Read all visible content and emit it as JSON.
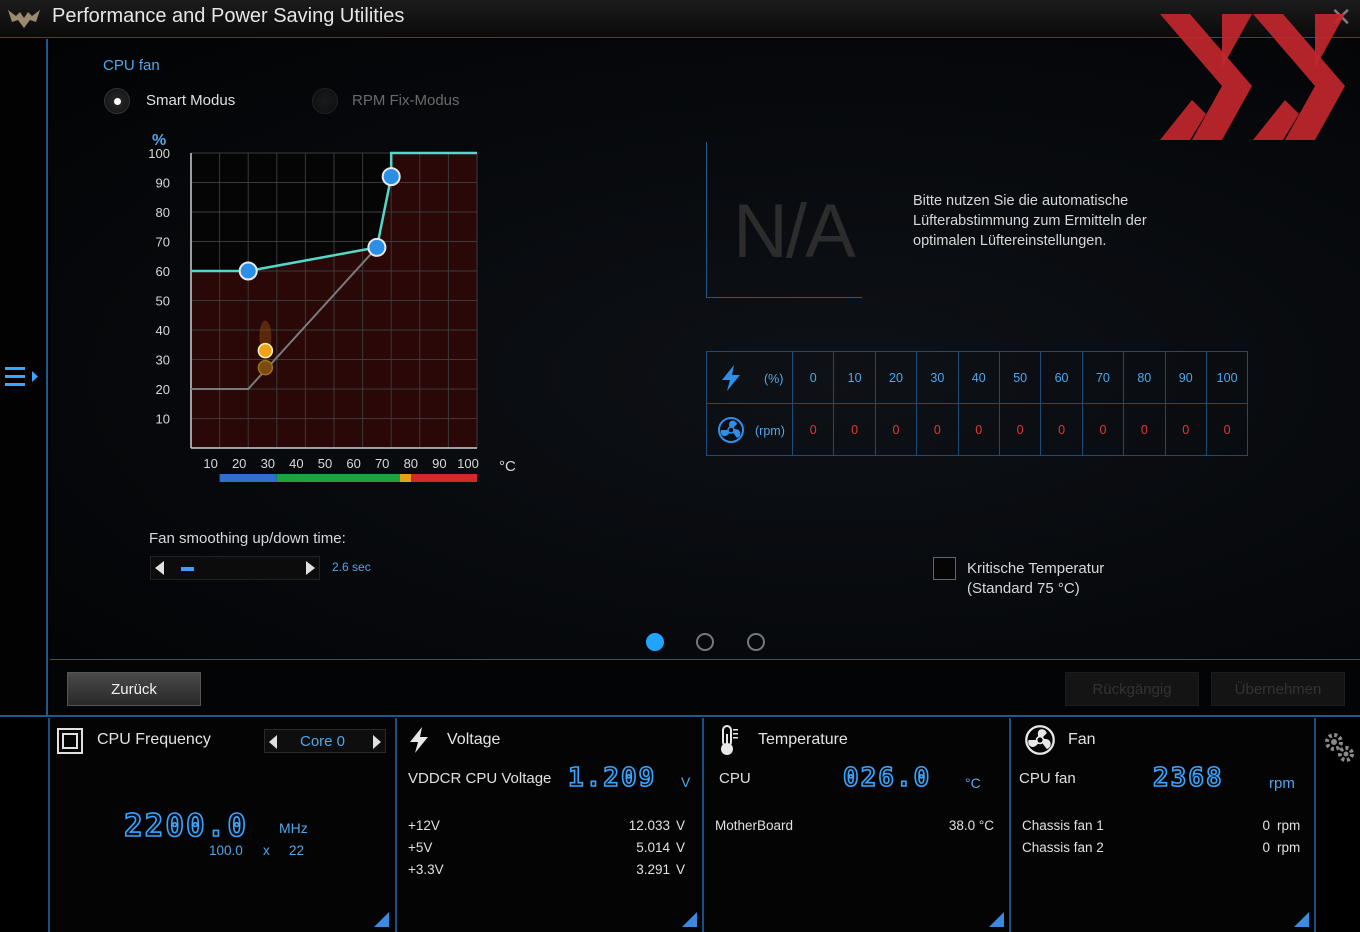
{
  "window": {
    "title": "Performance and Power Saving Utilities"
  },
  "fan": {
    "section_title": "CPU fan",
    "mode_options": [
      {
        "label": "Smart Modus",
        "selected": true
      },
      {
        "label": "RPM Fix-Modus",
        "selected": false
      }
    ],
    "graph": {
      "y_unit": "%",
      "x_unit": "°C",
      "y_ticks": [
        "100",
        "90",
        "80",
        "70",
        "60",
        "50",
        "40",
        "30",
        "20",
        "10"
      ],
      "x_ticks": [
        "10",
        "20",
        "30",
        "40",
        "50",
        "60",
        "70",
        "80",
        "90",
        "100"
      ],
      "curve_points": [
        {
          "temp": 20,
          "percent": 60
        },
        {
          "temp": 65,
          "percent": 68
        },
        {
          "temp": 70,
          "percent": 92
        }
      ],
      "current": {
        "temp": 26,
        "percent": 33
      },
      "colors": {
        "curve": "#55d6c8",
        "point": "#2a8fe6",
        "current": "#f2a21a",
        "hot_zone": "#2a0808"
      },
      "temp_zones": [
        {
          "from": 10,
          "to": 30,
          "color": "#2d6fc9"
        },
        {
          "from": 30,
          "to": 73,
          "color": "#1ea13e"
        },
        {
          "from": 73,
          "to": 77,
          "color": "#e0a21a"
        },
        {
          "from": 77,
          "to": 100,
          "color": "#d22a2a"
        }
      ]
    },
    "smoothing": {
      "label": "Fan smoothing up/down time:",
      "value": "2.6 sec",
      "level": 0.1
    },
    "na": {
      "text": "N/A",
      "hint": "Bitte nutzen Sie die automatische Lüfterabstimmung zum Ermitteln der optimalen Lüftereinstellungen."
    },
    "table": {
      "pct_unit": "(%)",
      "rpm_unit": "(rpm)",
      "percent": [
        "0",
        "10",
        "20",
        "30",
        "40",
        "50",
        "60",
        "70",
        "80",
        "90",
        "100"
      ],
      "rpm": [
        "0",
        "0",
        "0",
        "0",
        "0",
        "0",
        "0",
        "0",
        "0",
        "0",
        "0"
      ]
    },
    "critical": {
      "line1": "Kritische Temperatur",
      "line2": "(Standard 75 °C)",
      "checked": false
    },
    "pager": {
      "count": 3,
      "active": 0
    }
  },
  "buttons": {
    "back": "Zurück",
    "undo": "Rückgängig",
    "apply": "Übernehmen"
  },
  "status": {
    "cpu_freq": {
      "title": "CPU Frequency",
      "core": "Core 0",
      "value": "2200.0",
      "unit": "MHz",
      "bclk": "100.0",
      "x": "x",
      "ratio": "22"
    },
    "voltage": {
      "title": "Voltage",
      "main_label": "VDDCR CPU Voltage",
      "main_value": "1.209",
      "main_unit": "V",
      "rows": [
        {
          "label": "+12V",
          "value": "12.033",
          "unit": "V"
        },
        {
          "label": "+5V",
          "value": "5.014",
          "unit": "V"
        },
        {
          "label": "+3.3V",
          "value": "3.291",
          "unit": "V"
        }
      ]
    },
    "temperature": {
      "title": "Temperature",
      "main_label": "CPU",
      "main_value": "026.0",
      "main_unit": "°C",
      "rows": [
        {
          "label": "MotherBoard",
          "value": "38.0 °C"
        }
      ]
    },
    "fan": {
      "title": "Fan",
      "main_label": "CPU fan",
      "main_value": "2368",
      "main_unit": "rpm",
      "rows": [
        {
          "label": "Chassis fan 1",
          "value": "0",
          "unit": "rpm"
        },
        {
          "label": "Chassis fan 2",
          "value": "0",
          "unit": "rpm"
        }
      ]
    }
  },
  "colors": {
    "accent": "#3aa4ff",
    "border": "#1e5a8c",
    "watermark": "#c1272d"
  }
}
